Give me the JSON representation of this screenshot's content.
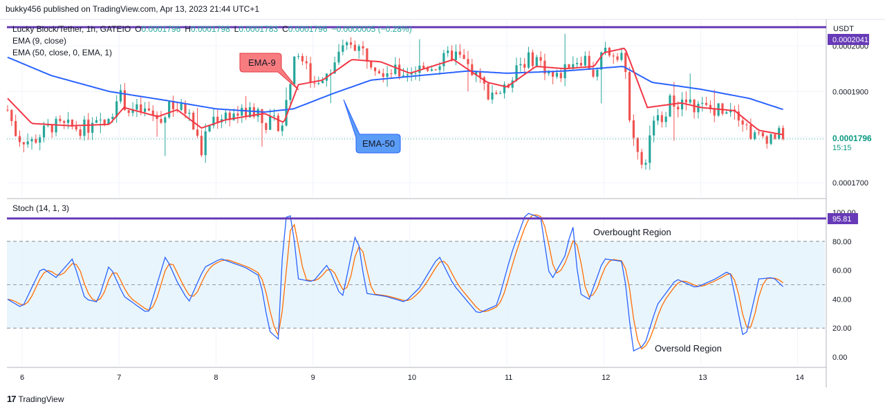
{
  "header": {
    "publisher": "bukky456 published on TradingView.com, Apr 13, 2023 21:44 UTC+1"
  },
  "legend": {
    "symbol": "Lucky Block/Tether, 1h, GATEIO",
    "o_label": "O",
    "o_value": "0.0001796",
    "h_label": "H",
    "h_value": "0.0001798",
    "l_label": "L",
    "l_value": "0.0001783",
    "c_label": "C",
    "c_value": "0.0001796",
    "change": "−0.0000005 (−0.28%)",
    "ema9": "EMA (9, close)",
    "ema50": "EMA (50, close, 0, EMA, 1)",
    "stoch": "Stoch (14, 1, 3)"
  },
  "price_axis": {
    "currency": "USDT",
    "ticks": [
      "0.0002000",
      "0.0001900",
      "0.0001700"
    ],
    "resistance_label": "0.0002041",
    "last_price_label": "0.0001796",
    "countdown": "15:15"
  },
  "stoch_axis": {
    "ticks": [
      "100.00",
      "80.00",
      "60.00",
      "40.00",
      "20.00",
      "0.00"
    ],
    "level_label": "95.81"
  },
  "time_axis": {
    "ticks": [
      "6",
      "7",
      "8",
      "9",
      "10",
      "11",
      "12",
      "13",
      "14"
    ]
  },
  "annotations": {
    "ema9_callout": "EMA-9",
    "ema50_callout": "EMA-50",
    "overbought": "Overbought Region",
    "oversold": "Oversold Region"
  },
  "footer": {
    "brand": "TradingView",
    "logo_text": "17"
  },
  "colors": {
    "up": "#26a69a",
    "down": "#ef5350",
    "ema9": "#f23645",
    "ema50": "#2962ff",
    "stoch_k": "#2962ff",
    "stoch_d": "#ff6d00",
    "level": "#673ab7",
    "band": "#e3f2fd"
  },
  "chart_data": [
    {
      "type": "candlestick",
      "title": "Lucky Block/Tether, 1h, GATEIO",
      "ylabel": "USDT",
      "ylim": [
        0.000167,
        0.0002055
      ],
      "x_ticks": [
        "6",
        "7",
        "8",
        "9",
        "10",
        "11",
        "12",
        "13",
        "14"
      ],
      "resistance": 0.0002041,
      "last_price": 0.0001796,
      "anchors": [
        {
          "day": 5.85,
          "close": 0.000186
        },
        {
          "day": 5.95,
          "close": 0.00018
        },
        {
          "day": 6.1,
          "close": 0.000179
        },
        {
          "day": 6.3,
          "close": 0.0001825
        },
        {
          "day": 6.6,
          "close": 0.000182
        },
        {
          "day": 6.9,
          "close": 0.000183
        },
        {
          "day": 6.98,
          "close": 0.00019
        },
        {
          "day": 7.1,
          "close": 0.000186
        },
        {
          "day": 7.3,
          "close": 0.0001855
        },
        {
          "day": 7.45,
          "close": 0.000183
        },
        {
          "day": 7.5,
          "close": 0.000188
        },
        {
          "day": 7.62,
          "close": 0.000186
        },
        {
          "day": 7.7,
          "close": 0.000186
        },
        {
          "day": 7.85,
          "close": 0.000177
        },
        {
          "day": 7.95,
          "close": 0.000184
        },
        {
          "day": 8.1,
          "close": 0.000185
        },
        {
          "day": 8.3,
          "close": 0.0001852
        },
        {
          "day": 8.45,
          "close": 0.000186
        },
        {
          "day": 8.5,
          "close": 0.000183
        },
        {
          "day": 8.7,
          "close": 0.000183
        },
        {
          "day": 8.75,
          "close": 0.000192
        },
        {
          "day": 8.85,
          "close": 0.000199
        },
        {
          "day": 9.0,
          "close": 0.0001915
        },
        {
          "day": 9.2,
          "close": 0.000196
        },
        {
          "day": 9.4,
          "close": 0.000201
        },
        {
          "day": 9.55,
          "close": 0.000198
        },
        {
          "day": 9.7,
          "close": 0.000195
        },
        {
          "day": 9.9,
          "close": 0.000194
        },
        {
          "day": 10.1,
          "close": 0.000195
        },
        {
          "day": 10.3,
          "close": 0.000196
        },
        {
          "day": 10.45,
          "close": 0.0001985
        },
        {
          "day": 10.6,
          "close": 0.0001955
        },
        {
          "day": 10.8,
          "close": 0.00019
        },
        {
          "day": 10.98,
          "close": 0.00019
        },
        {
          "day": 11.1,
          "close": 0.000196
        },
        {
          "day": 11.3,
          "close": 0.0001975
        },
        {
          "day": 11.5,
          "close": 0.0001925
        },
        {
          "day": 11.65,
          "close": 0.0001965
        },
        {
          "day": 11.8,
          "close": 0.0001975
        },
        {
          "day": 11.92,
          "close": 0.000193
        },
        {
          "day": 12.0,
          "close": 0.000199
        },
        {
          "day": 12.2,
          "close": 0.0001985
        },
        {
          "day": 12.25,
          "close": 0.000187
        },
        {
          "day": 12.4,
          "close": 0.000172
        },
        {
          "day": 12.5,
          "close": 0.000182
        },
        {
          "day": 12.7,
          "close": 0.000188
        },
        {
          "day": 12.9,
          "close": 0.000187
        },
        {
          "day": 13.1,
          "close": 0.000186
        },
        {
          "day": 13.35,
          "close": 0.000187
        },
        {
          "day": 13.45,
          "close": 0.000183
        },
        {
          "day": 13.55,
          "close": 0.00018
        },
        {
          "day": 13.8,
          "close": 0.0001805
        },
        {
          "day": 13.86,
          "close": 0.0001796
        }
      ],
      "ema9_anchors": [
        {
          "day": 5.85,
          "value": 0.0001885
        },
        {
          "day": 6.1,
          "value": 0.000183
        },
        {
          "day": 6.5,
          "value": 0.0001825
        },
        {
          "day": 6.9,
          "value": 0.0001828
        },
        {
          "day": 7.05,
          "value": 0.0001865
        },
        {
          "day": 7.4,
          "value": 0.0001845
        },
        {
          "day": 7.6,
          "value": 0.000186
        },
        {
          "day": 7.85,
          "value": 0.000182
        },
        {
          "day": 8.1,
          "value": 0.0001838
        },
        {
          "day": 8.5,
          "value": 0.0001852
        },
        {
          "day": 8.7,
          "value": 0.0001832
        },
        {
          "day": 8.85,
          "value": 0.0001915
        },
        {
          "day": 9.1,
          "value": 0.0001925
        },
        {
          "day": 9.4,
          "value": 0.000197
        },
        {
          "day": 9.7,
          "value": 0.0001965
        },
        {
          "day": 10.0,
          "value": 0.000194
        },
        {
          "day": 10.45,
          "value": 0.000197
        },
        {
          "day": 10.8,
          "value": 0.000192
        },
        {
          "day": 11.0,
          "value": 0.000191
        },
        {
          "day": 11.3,
          "value": 0.0001955
        },
        {
          "day": 11.6,
          "value": 0.000195
        },
        {
          "day": 11.9,
          "value": 0.0001955
        },
        {
          "day": 12.0,
          "value": 0.0001985
        },
        {
          "day": 12.22,
          "value": 0.0001995
        },
        {
          "day": 12.45,
          "value": 0.0001865
        },
        {
          "day": 12.8,
          "value": 0.0001875
        },
        {
          "day": 13.0,
          "value": 0.0001865
        },
        {
          "day": 13.35,
          "value": 0.0001858
        },
        {
          "day": 13.6,
          "value": 0.0001815
        },
        {
          "day": 13.86,
          "value": 0.0001805
        }
      ],
      "ema50_anchors": [
        {
          "day": 5.85,
          "value": 0.0001975
        },
        {
          "day": 6.3,
          "value": 0.0001935
        },
        {
          "day": 6.9,
          "value": 0.00019
        },
        {
          "day": 7.5,
          "value": 0.000188
        },
        {
          "day": 8.0,
          "value": 0.0001862
        },
        {
          "day": 8.5,
          "value": 0.0001855
        },
        {
          "day": 8.8,
          "value": 0.0001862
        },
        {
          "day": 9.2,
          "value": 0.0001895
        },
        {
          "day": 9.6,
          "value": 0.0001925
        },
        {
          "day": 10.1,
          "value": 0.0001935
        },
        {
          "day": 10.6,
          "value": 0.0001945
        },
        {
          "day": 11.0,
          "value": 0.000194
        },
        {
          "day": 11.6,
          "value": 0.0001945
        },
        {
          "day": 12.2,
          "value": 0.0001955
        },
        {
          "day": 12.5,
          "value": 0.000192
        },
        {
          "day": 13.0,
          "value": 0.0001905
        },
        {
          "day": 13.5,
          "value": 0.0001885
        },
        {
          "day": 13.86,
          "value": 0.000186
        }
      ]
    },
    {
      "type": "line",
      "title": "Stoch (14, 1, 3)",
      "ylim": [
        0,
        100
      ],
      "levels": [
        80,
        50,
        20
      ],
      "upper_line": 95.81,
      "k_anchors": [
        {
          "day": 5.85,
          "value": 40
        },
        {
          "day": 6.0,
          "value": 34
        },
        {
          "day": 6.2,
          "value": 62
        },
        {
          "day": 6.35,
          "value": 55
        },
        {
          "day": 6.52,
          "value": 68
        },
        {
          "day": 6.65,
          "value": 40
        },
        {
          "day": 6.78,
          "value": 38
        },
        {
          "day": 6.9,
          "value": 64
        },
        {
          "day": 7.05,
          "value": 42
        },
        {
          "day": 7.3,
          "value": 30
        },
        {
          "day": 7.48,
          "value": 70
        },
        {
          "day": 7.6,
          "value": 52
        },
        {
          "day": 7.72,
          "value": 38
        },
        {
          "day": 7.88,
          "value": 62
        },
        {
          "day": 8.05,
          "value": 68
        },
        {
          "day": 8.3,
          "value": 62
        },
        {
          "day": 8.45,
          "value": 56
        },
        {
          "day": 8.55,
          "value": 18
        },
        {
          "day": 8.65,
          "value": 12
        },
        {
          "day": 8.7,
          "value": 96
        },
        {
          "day": 8.78,
          "value": 98
        },
        {
          "day": 8.85,
          "value": 54
        },
        {
          "day": 9.0,
          "value": 52
        },
        {
          "day": 9.15,
          "value": 64
        },
        {
          "day": 9.3,
          "value": 40
        },
        {
          "day": 9.45,
          "value": 88
        },
        {
          "day": 9.55,
          "value": 44
        },
        {
          "day": 9.75,
          "value": 42
        },
        {
          "day": 9.95,
          "value": 38
        },
        {
          "day": 10.1,
          "value": 48
        },
        {
          "day": 10.3,
          "value": 70
        },
        {
          "day": 10.45,
          "value": 50
        },
        {
          "day": 10.7,
          "value": 30
        },
        {
          "day": 10.9,
          "value": 36
        },
        {
          "day": 11.05,
          "value": 72
        },
        {
          "day": 11.2,
          "value": 100
        },
        {
          "day": 11.35,
          "value": 96
        },
        {
          "day": 11.45,
          "value": 52
        },
        {
          "day": 11.6,
          "value": 70
        },
        {
          "day": 11.68,
          "value": 92
        },
        {
          "day": 11.75,
          "value": 44
        },
        {
          "day": 11.85,
          "value": 40
        },
        {
          "day": 12.0,
          "value": 68
        },
        {
          "day": 12.2,
          "value": 66
        },
        {
          "day": 12.3,
          "value": 4
        },
        {
          "day": 12.42,
          "value": 8
        },
        {
          "day": 12.55,
          "value": 36
        },
        {
          "day": 12.75,
          "value": 54
        },
        {
          "day": 12.95,
          "value": 48
        },
        {
          "day": 13.15,
          "value": 54
        },
        {
          "day": 13.3,
          "value": 60
        },
        {
          "day": 13.45,
          "value": 10
        },
        {
          "day": 13.6,
          "value": 54
        },
        {
          "day": 13.75,
          "value": 55
        },
        {
          "day": 13.86,
          "value": 48
        }
      ]
    }
  ]
}
